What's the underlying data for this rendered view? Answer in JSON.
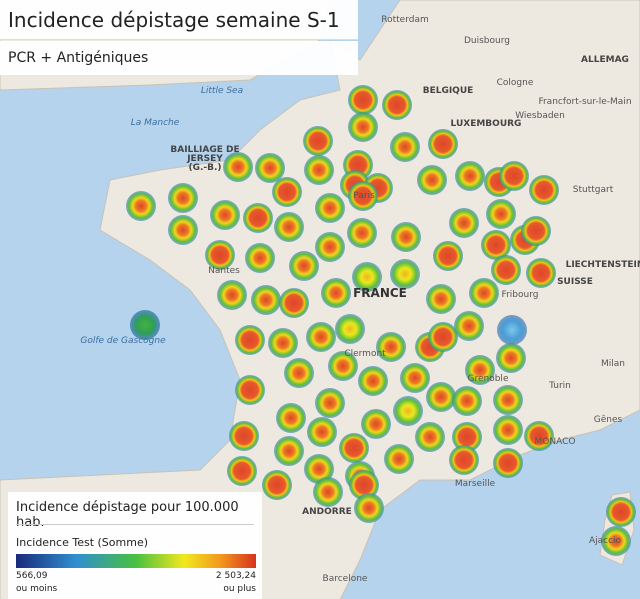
{
  "header": {
    "title": "Incidence dépistage semaine S-1",
    "subtitle": "PCR + Antigéniques"
  },
  "legend": {
    "title": "Incidence dépistage pour 100.000 hab.",
    "measure": "Incidence Test (Somme)",
    "min": "566,09",
    "min_note": "ou moins",
    "max": "2 503,24",
    "max_note": "ou plus"
  },
  "map_labels": [
    "Rotterdam",
    "Duisbourg",
    "ALLEMAG",
    "BELGIQUE",
    "Cologne",
    "Little Sea",
    "La Manche",
    "BAILLIAGE DE",
    "JERSEY",
    "(G.-B.)",
    "LUXEMBOURG",
    "Francfort-sur-le-Main",
    "Wiesbaden",
    "Stuttgart",
    "Paris",
    "Nantes",
    "FRANCE",
    "LIECHTENSTEIN",
    "SUISSE",
    "Fribourg",
    "Golfe de Gascogne",
    "Clermont",
    "Grenoble",
    "Milan",
    "Turin",
    "Gênes",
    "MONACO",
    "Marseille",
    "ANDORRE",
    "Barcelone",
    "Ajaccio"
  ]
}
